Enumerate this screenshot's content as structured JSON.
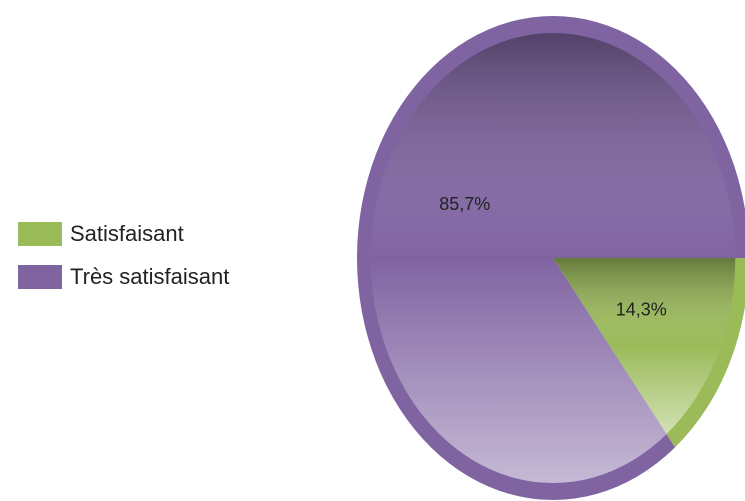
{
  "chart_data": {
    "type": "pie",
    "categories": [
      "Satisfaisant",
      "Très satisfaisant"
    ],
    "values": [
      14.3,
      85.7
    ],
    "value_labels": [
      "14,3%",
      "85,7%"
    ],
    "colors": [
      "#9bbb59",
      "#8064a2"
    ],
    "legend": "left"
  }
}
